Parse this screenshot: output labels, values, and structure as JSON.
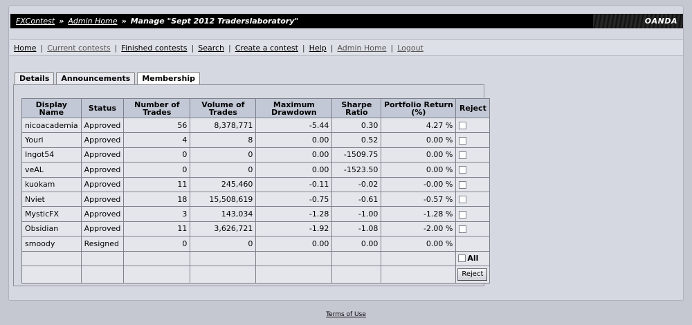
{
  "breadcrumb": {
    "home": "FXContest",
    "sep1": "»",
    "admin": "Admin Home",
    "sep2": "»",
    "title": "Manage \"Sept 2012 Traderslaboratory\""
  },
  "brand": "OANDA",
  "nav": {
    "items": [
      "Home",
      "Current contests",
      "Finished contests",
      "Search",
      "Create a contest",
      "Help",
      "Admin Home",
      "Logout"
    ],
    "pipe": "|"
  },
  "tabs": [
    "Details",
    "Announcements",
    "Membership"
  ],
  "table": {
    "headers": {
      "display_name": "Display Name",
      "status": "Status",
      "trades": "Number of Trades",
      "volume": "Volume of Trades",
      "drawdown": "Maximum Drawdown",
      "sharpe": "Sharpe Ratio",
      "portfolio": "Portfolio Return (%)",
      "reject": "Reject"
    },
    "rows": [
      {
        "name": "nicoacademia",
        "status": "Approved",
        "trades": "56",
        "volume": "8,378,771",
        "drawdown": "-5.44",
        "sharpe": "0.30",
        "portfolio": "4.27 %"
      },
      {
        "name": "Youri",
        "status": "Approved",
        "trades": "4",
        "volume": "8",
        "drawdown": "0.00",
        "sharpe": "0.52",
        "portfolio": "0.00 %"
      },
      {
        "name": "Ingot54",
        "status": "Approved",
        "trades": "0",
        "volume": "0",
        "drawdown": "0.00",
        "sharpe": "-1509.75",
        "portfolio": "0.00 %"
      },
      {
        "name": "veAL",
        "status": "Approved",
        "trades": "0",
        "volume": "0",
        "drawdown": "0.00",
        "sharpe": "-1523.50",
        "portfolio": "0.00 %"
      },
      {
        "name": "kuokam",
        "status": "Approved",
        "trades": "11",
        "volume": "245,460",
        "drawdown": "-0.11",
        "sharpe": "-0.02",
        "portfolio": "-0.00 %"
      },
      {
        "name": "Nviet",
        "status": "Approved",
        "trades": "18",
        "volume": "15,508,619",
        "drawdown": "-0.75",
        "sharpe": "-0.61",
        "portfolio": "-0.57 %"
      },
      {
        "name": "MysticFX",
        "status": "Approved",
        "trades": "3",
        "volume": "143,034",
        "drawdown": "-1.28",
        "sharpe": "-1.00",
        "portfolio": "-1.28 %"
      },
      {
        "name": "Obsidian",
        "status": "Approved",
        "trades": "11",
        "volume": "3,626,721",
        "drawdown": "-1.92",
        "sharpe": "-1.08",
        "portfolio": "-2.00 %"
      },
      {
        "name": "smoody",
        "status": "Resigned",
        "trades": "0",
        "volume": "0",
        "drawdown": "0.00",
        "sharpe": "0.00",
        "portfolio": "0.00 %"
      }
    ],
    "all_label": "All",
    "reject_button": "Reject"
  },
  "footer": {
    "terms": "Terms of Use"
  }
}
